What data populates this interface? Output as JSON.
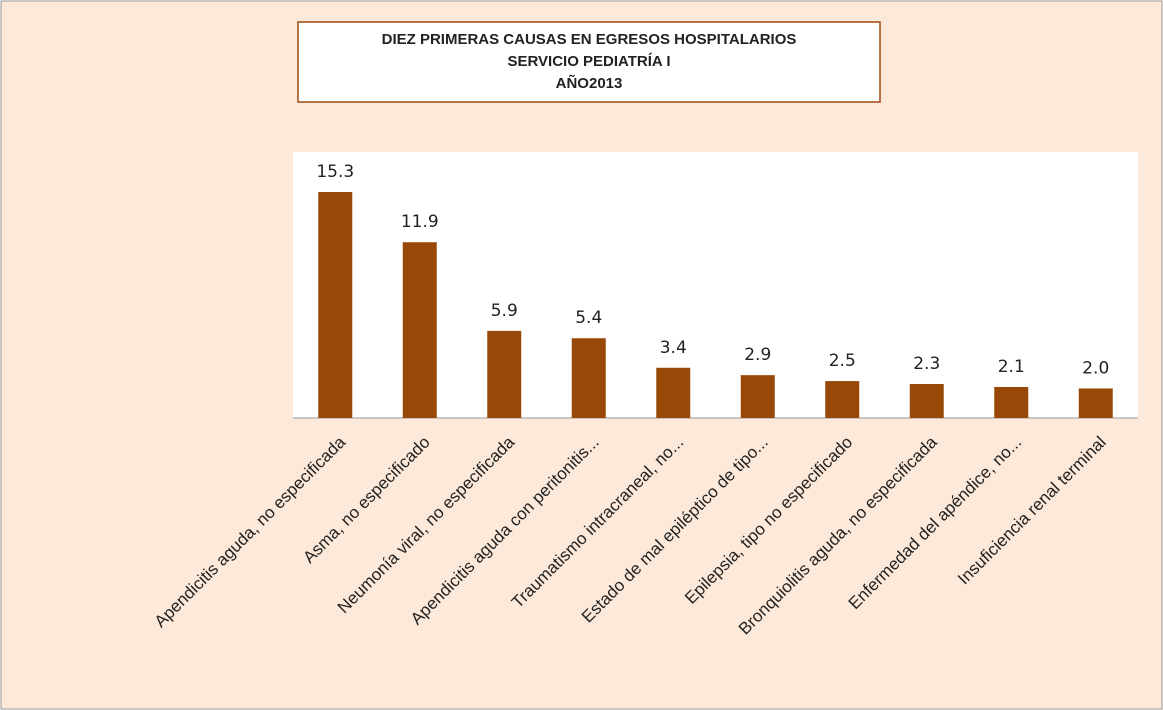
{
  "chart_data": {
    "type": "bar",
    "title": [
      "DIEZ PRIMERAS CAUSAS EN EGRESOS HOSPITALARIOS",
      "SERVICIO PEDIATRÍA I",
      "AÑO2013"
    ],
    "categories": [
      "Apendicitis aguda, no especificada",
      "Asma, no especificado",
      "Neumonía viral, no especificada",
      "Apendicitis aguda con peritonitis...",
      "Traumatismo intracraneal, no...",
      "Estado de mal epiléptico de tipo...",
      "Epilepsia, tipo no especificado",
      "Bronquiolitis aguda, no especificada",
      "Enfermedad del apéndice, no...",
      "Insuficiencia renal terminal"
    ],
    "values": [
      15.3,
      11.9,
      5.9,
      5.4,
      3.4,
      2.9,
      2.5,
      2.3,
      2.1,
      2.0
    ],
    "value_labels": [
      "15.3",
      "11.9",
      "5.9",
      "5.4",
      "3.4",
      "2.9",
      "2.5",
      "2.3",
      "2.1",
      "2.0"
    ],
    "color": "#984807"
  }
}
